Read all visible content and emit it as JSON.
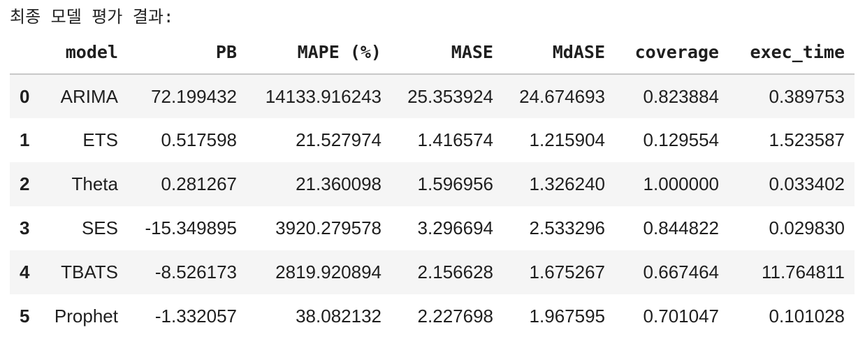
{
  "caption": "최종 모델 평가 결과:",
  "table": {
    "index_header": "",
    "columns": [
      "model",
      "PB",
      "MAPE (%)",
      "MASE",
      "MdASE",
      "coverage",
      "exec_time"
    ],
    "rows": [
      {
        "index": "0",
        "cells": [
          "ARIMA",
          "72.199432",
          "14133.916243",
          "25.353924",
          "24.674693",
          "0.823884",
          "0.389753"
        ]
      },
      {
        "index": "1",
        "cells": [
          "ETS",
          "0.517598",
          "21.527974",
          "1.416574",
          "1.215904",
          "0.129554",
          "1.523587"
        ]
      },
      {
        "index": "2",
        "cells": [
          "Theta",
          "0.281267",
          "21.360098",
          "1.596956",
          "1.326240",
          "1.000000",
          "0.033402"
        ]
      },
      {
        "index": "3",
        "cells": [
          "SES",
          "-15.349895",
          "3920.279578",
          "3.296694",
          "2.533296",
          "0.844822",
          "0.029830"
        ]
      },
      {
        "index": "4",
        "cells": [
          "TBATS",
          "-8.526173",
          "2819.920894",
          "2.156628",
          "1.675267",
          "0.667464",
          "11.764811"
        ]
      },
      {
        "index": "5",
        "cells": [
          "Prophet",
          "-1.332057",
          "38.082132",
          "2.227698",
          "1.967595",
          "0.701047",
          "0.101028"
        ]
      }
    ]
  }
}
